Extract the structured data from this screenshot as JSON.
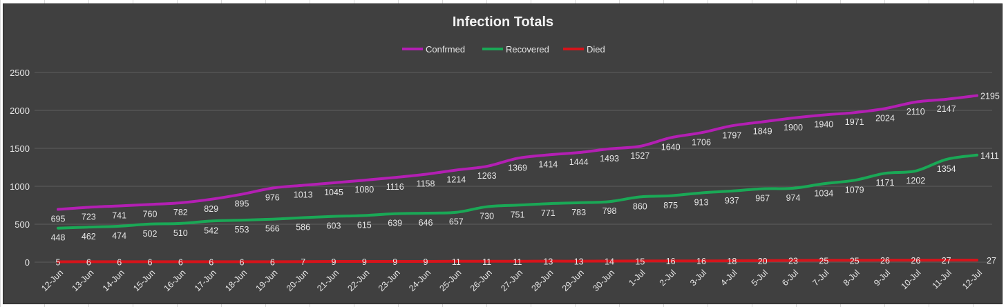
{
  "chart_data": {
    "type": "line",
    "title": "Infection Totals",
    "legend_position": "top",
    "grid": true,
    "ylim": [
      0,
      2500
    ],
    "y_ticks": [
      0,
      500,
      1000,
      1500,
      2000,
      2500
    ],
    "categories": [
      "12-Jun",
      "13-Jun",
      "14-Jun",
      "15-Jun",
      "16-Jun",
      "17-Jun",
      "18-Jun",
      "19-Jun",
      "20-Jun",
      "21-Jun",
      "22-Jun",
      "23-Jun",
      "24-Jun",
      "25-Jun",
      "26-Jun",
      "27-Jun",
      "28-Jun",
      "29-Jun",
      "30-Jun",
      "1-Jul",
      "2-Jul",
      "3-Jul",
      "4-Jul",
      "5-Jul",
      "6-Jul",
      "7-Jul",
      "8-Jul",
      "9-Jul",
      "10-Jul",
      "11-Jul",
      "12-Jul"
    ],
    "series": [
      {
        "name": "Confrmed",
        "color": "#b31fb3",
        "label_position": "below",
        "values": [
          695,
          723,
          741,
          760,
          782,
          829,
          895,
          976,
          1013,
          1045,
          1080,
          1116,
          1158,
          1214,
          1263,
          1369,
          1414,
          1444,
          1493,
          1527,
          1640,
          1706,
          1797,
          1849,
          1900,
          1940,
          1971,
          2024,
          2110,
          2147,
          2195
        ]
      },
      {
        "name": "Recovered",
        "color": "#1aa856",
        "label_position": "below",
        "values": [
          448,
          462,
          474,
          502,
          510,
          542,
          553,
          566,
          586,
          603,
          615,
          639,
          646,
          657,
          730,
          751,
          771,
          783,
          798,
          860,
          875,
          913,
          937,
          967,
          974,
          1034,
          1079,
          1171,
          1202,
          1354,
          1411
        ]
      },
      {
        "name": "Died",
        "color": "#d6141b",
        "label_position": "center",
        "values": [
          5,
          6,
          6,
          6,
          6,
          6,
          6,
          6,
          7,
          9,
          9,
          9,
          9,
          11,
          11,
          11,
          13,
          13,
          14,
          15,
          16,
          16,
          18,
          20,
          23,
          25,
          25,
          26,
          26,
          27,
          27
        ]
      }
    ]
  }
}
